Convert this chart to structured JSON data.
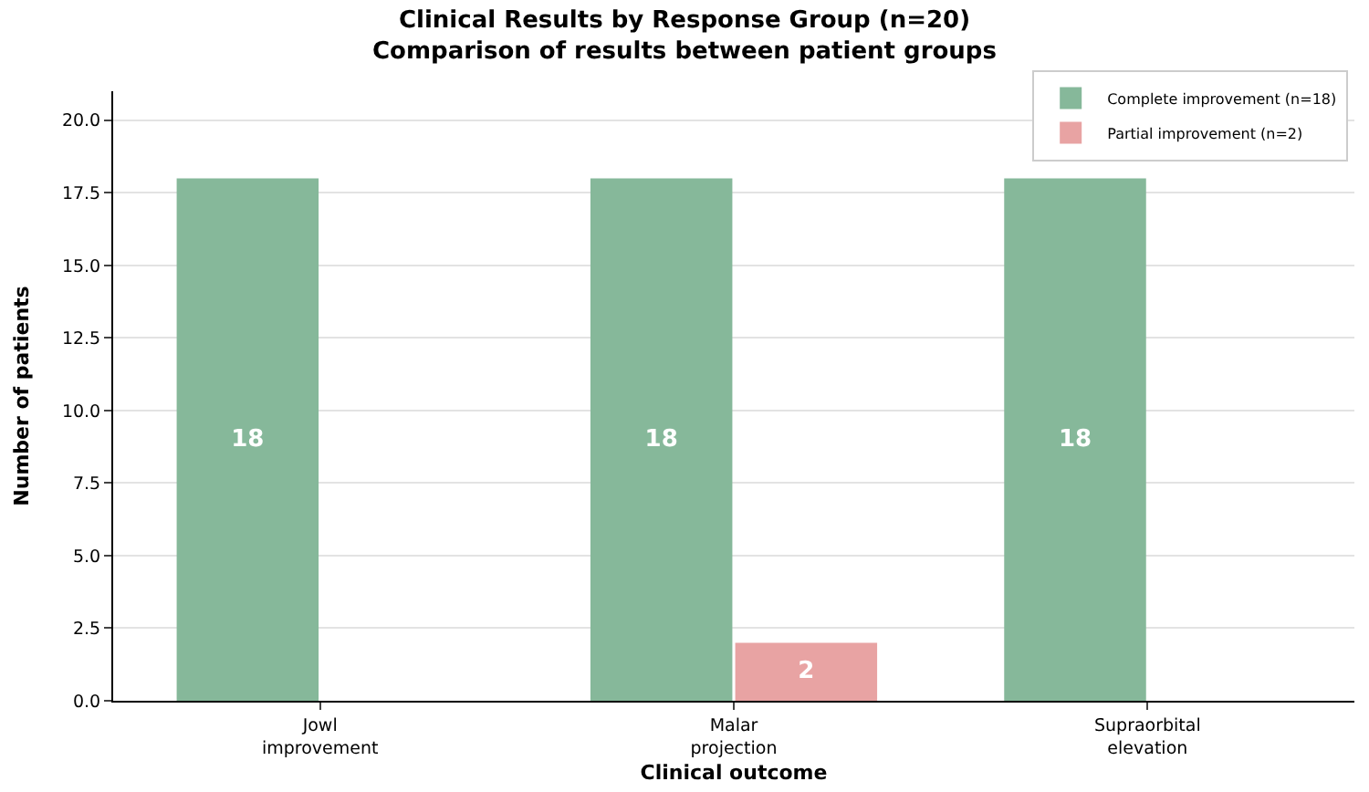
{
  "chart_data": {
    "type": "bar",
    "title": "Clinical Results by Response Group (n=20)",
    "subtitle": "Comparison of results between patient groups",
    "xlabel": "Clinical outcome",
    "ylabel": "Number of patients",
    "categories": [
      "Jowl improvement",
      "Malar projection",
      "Supraorbital elevation"
    ],
    "series": [
      {
        "name": "Complete improvement (n=18)",
        "color": "#86b89a",
        "values": [
          18,
          18,
          18
        ]
      },
      {
        "name": "Partial improvement (n=2)",
        "color": "#e8a3a3",
        "values": [
          null,
          2,
          null
        ]
      }
    ],
    "ylim": [
      0,
      21
    ],
    "yticks": [
      {
        "value": 0,
        "label": "0.0"
      },
      {
        "value": 2.5,
        "label": "2.5"
      },
      {
        "value": 5,
        "label": "5.0"
      },
      {
        "value": 7.5,
        "label": "7.5"
      },
      {
        "value": 10,
        "label": "10.0"
      },
      {
        "value": 12.5,
        "label": "12.5"
      },
      {
        "value": 15,
        "label": "15.0"
      },
      {
        "value": 17.5,
        "label": "17.5"
      },
      {
        "value": 20,
        "label": "20.0"
      }
    ],
    "grid": "y",
    "legend": "top right",
    "data_labels": true
  }
}
